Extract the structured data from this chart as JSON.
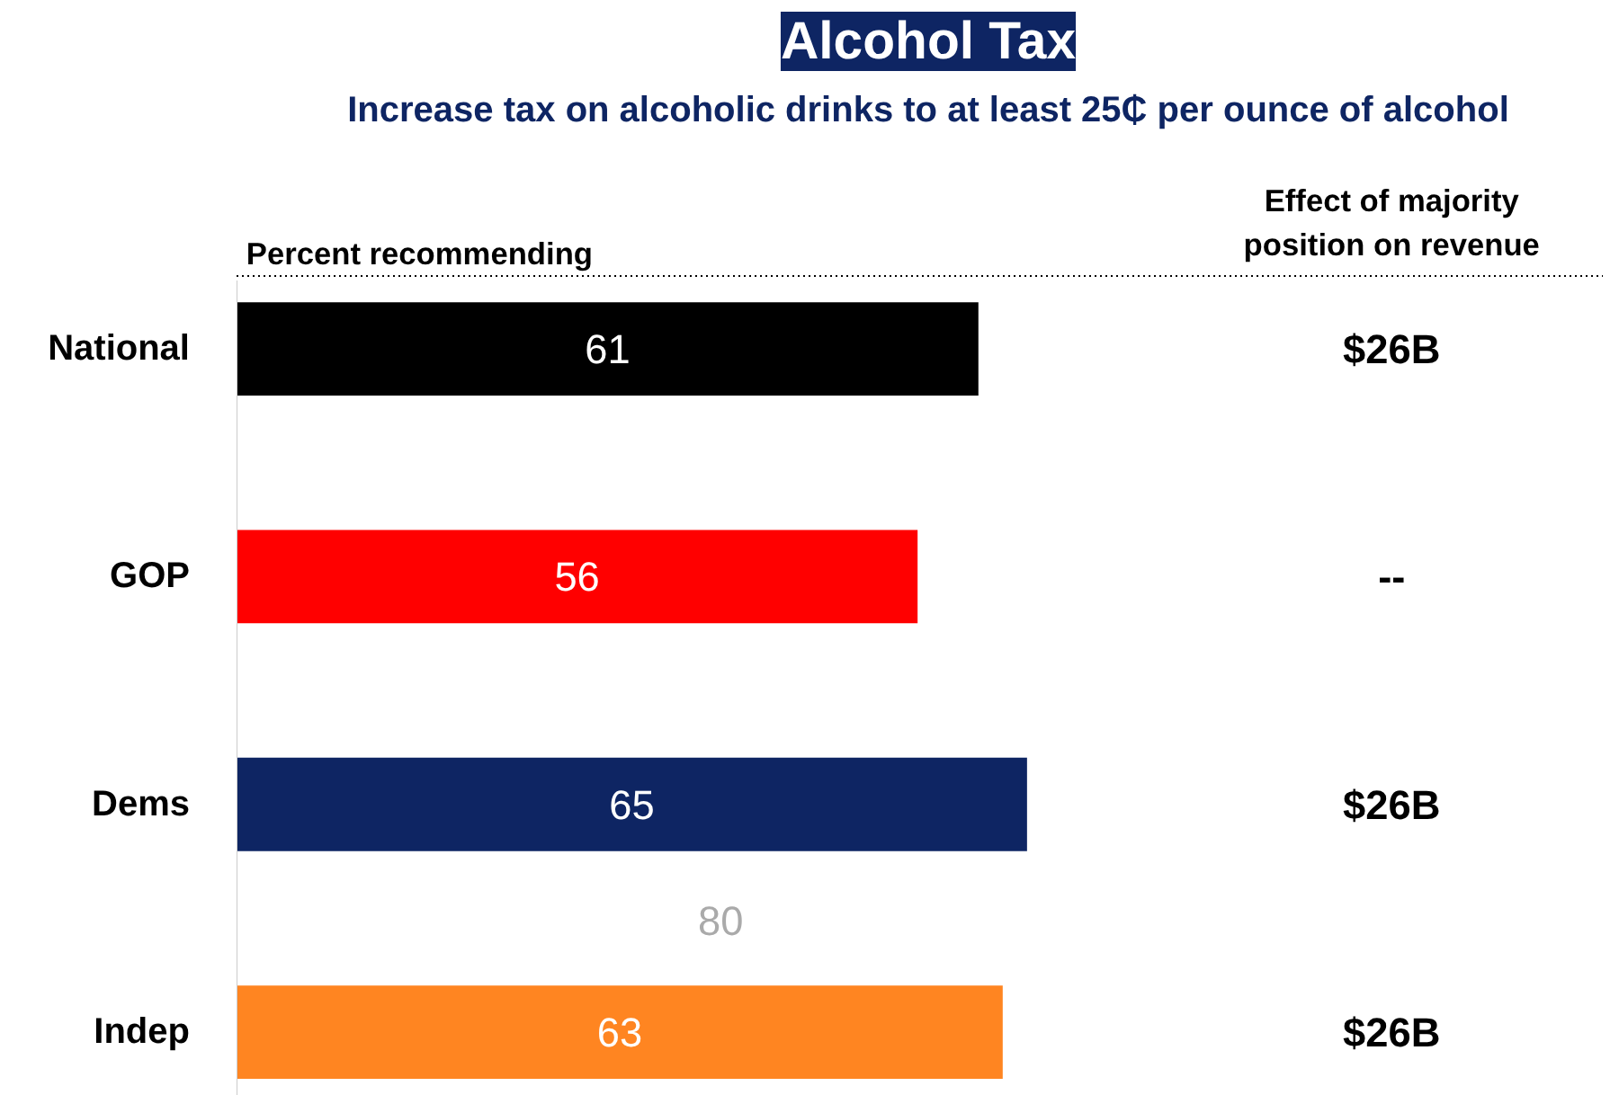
{
  "chart_data": {
    "type": "bar",
    "orientation": "horizontal",
    "title": "Alcohol Tax",
    "subtitle": "Increase tax on alcoholic drinks to at least 25₵ per ounce of alcohol",
    "xlabel": "Percent recommending",
    "categories": [
      "National",
      "GOP",
      "Dems",
      "Indep"
    ],
    "values": [
      61,
      56,
      65,
      63
    ],
    "colors": [
      "#000000",
      "#ff0000",
      "#0e2563",
      "#ff8521"
    ],
    "data_labels": true,
    "grid": false,
    "annotations": [
      "Effect of majority position on revenue",
      "$26B",
      "--",
      "$26B",
      "$26B",
      "80"
    ]
  }
}
